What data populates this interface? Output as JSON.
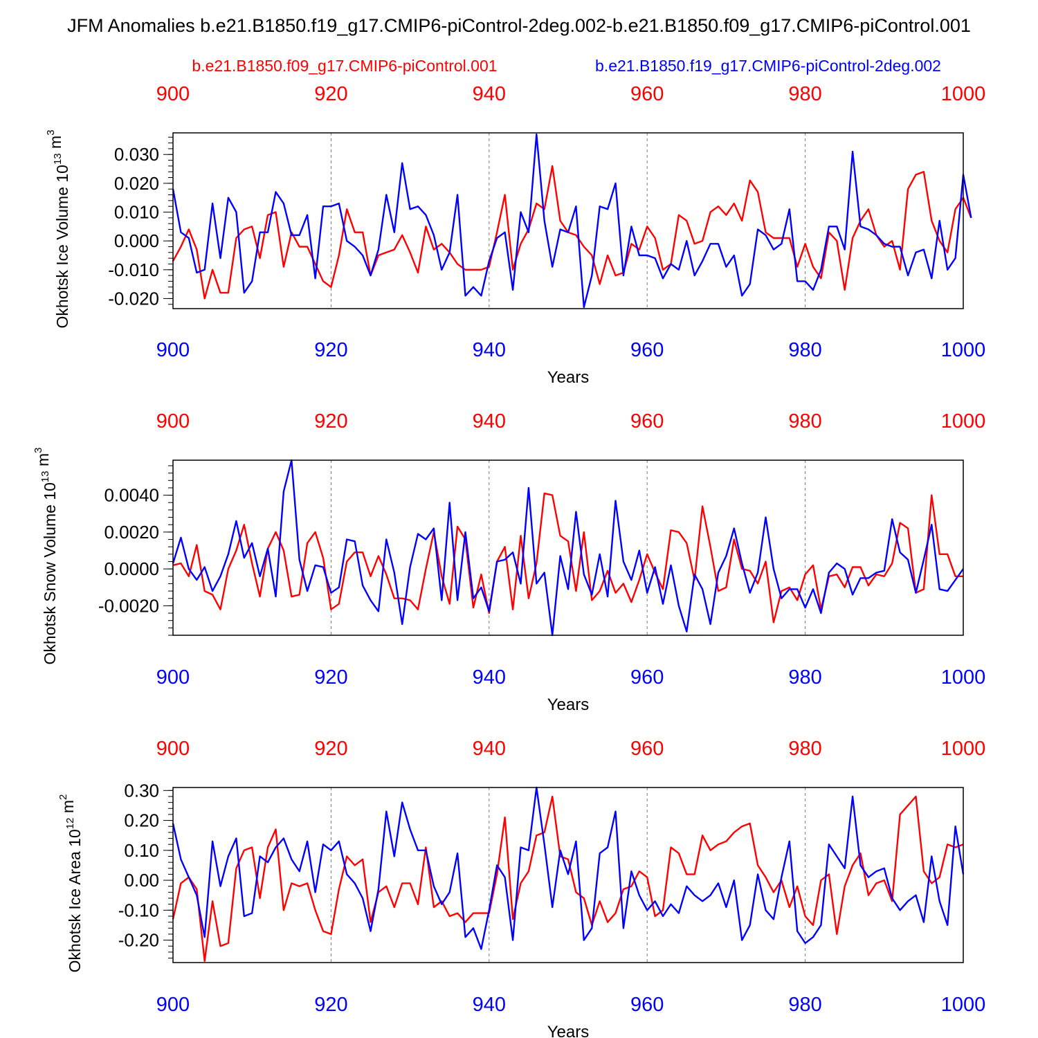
{
  "title": "JFM Anomalies b.e21.B1850.f19_g17.CMIP6-piControl-2deg.002-b.e21.B1850.f09_g17.CMIP6-piControl.001",
  "legend": {
    "red_label": "b.e21.B1850.f09_g17.CMIP6-piControl.001",
    "blue_label": "b.e21.B1850.f19_g17.CMIP6-piControl-2deg.002"
  },
  "colors": {
    "red": "#ff0000",
    "blue": "#0000ff",
    "frame": "#000000",
    "grid": "#777777"
  },
  "chart_data": [
    {
      "type": "line",
      "ylabel_main": "Okhotsk Ice Volume 10",
      "ylabel_sup": "13",
      "ylabel_unit": " m",
      "ylabel_unit_sup": "3",
      "xlabel": "Years",
      "xlim": [
        900,
        1000
      ],
      "ylim": [
        -0.0235,
        0.0375
      ],
      "xticks": [
        900,
        920,
        940,
        960,
        980,
        1000
      ],
      "xticklabels": [
        "900",
        "920",
        "940",
        "960",
        "980",
        "1000"
      ],
      "yticks": [
        -0.02,
        -0.01,
        0.0,
        0.01,
        0.02,
        0.03
      ],
      "yticklabels": [
        "-0.020",
        "-0.010",
        "0.000",
        "0.010",
        "0.020",
        "0.030"
      ],
      "series": [
        {
          "name": "b.e21.B1850.f09_g17.CMIP6-piControl.001",
          "color": "red",
          "x_start": 900,
          "values": [
            -0.007,
            -0.002,
            0.004,
            -0.003,
            -0.02,
            -0.01,
            -0.018,
            -0.018,
            0.001,
            0.004,
            0.005,
            -0.006,
            0.009,
            0.01,
            -0.009,
            0.003,
            -0.002,
            -0.002,
            -0.008,
            -0.014,
            -0.016,
            -0.005,
            0.011,
            0.003,
            0.003,
            -0.012,
            -0.005,
            -0.004,
            -0.003,
            0.002,
            -0.004,
            -0.011,
            0.005,
            -0.003,
            -0.001,
            -0.004,
            -0.008,
            -0.01,
            -0.01,
            -0.01,
            -0.009,
            0.003,
            0.016,
            -0.01,
            -0.001,
            0.004,
            0.013,
            0.011,
            0.026,
            0.007,
            0.003,
            0.002,
            -0.002,
            -0.005,
            -0.015,
            -0.005,
            -0.012,
            -0.011,
            -0.001,
            -0.003,
            0.005,
            0.001,
            -0.01,
            -0.008,
            0.009,
            0.007,
            -0.001,
            0.0,
            0.01,
            0.012,
            0.009,
            0.013,
            0.007,
            0.021,
            0.017,
            0.003,
            0.001,
            0.001,
            0.001,
            -0.009,
            -0.001,
            -0.009,
            -0.013,
            0.003,
            0.0,
            -0.017,
            0.001,
            0.007,
            0.011,
            0.002,
            -0.002,
            0.0,
            -0.01,
            0.018,
            0.023,
            0.024,
            0.007,
            0.0,
            -0.004,
            0.011,
            0.015,
            0.008
          ]
        },
        {
          "name": "b.e21.B1850.f19_g17.CMIP6-piControl-2deg.002",
          "color": "blue",
          "x_start": 900,
          "values": [
            0.018,
            0.003,
            0.001,
            -0.011,
            -0.01,
            0.013,
            -0.006,
            0.015,
            0.01,
            -0.018,
            -0.014,
            0.003,
            0.003,
            0.017,
            0.013,
            0.002,
            0.002,
            0.009,
            -0.013,
            0.012,
            0.012,
            0.013,
            0.0,
            -0.002,
            -0.005,
            -0.012,
            -0.003,
            0.016,
            0.003,
            0.027,
            0.011,
            0.012,
            0.009,
            0.002,
            -0.01,
            -0.004,
            0.016,
            -0.019,
            -0.016,
            -0.019,
            -0.007,
            0.001,
            0.003,
            -0.017,
            0.01,
            0.003,
            0.037,
            0.007,
            -0.009,
            0.004,
            0.003,
            0.012,
            -0.023,
            -0.012,
            0.012,
            0.011,
            0.02,
            -0.012,
            0.005,
            -0.005,
            -0.005,
            -0.006,
            -0.013,
            -0.008,
            -0.01,
            0.0,
            -0.012,
            -0.007,
            -0.001,
            -0.001,
            -0.009,
            -0.005,
            -0.019,
            -0.015,
            0.004,
            0.002,
            -0.003,
            -0.001,
            0.011,
            -0.014,
            -0.014,
            -0.017,
            -0.01,
            0.005,
            0.005,
            -0.003,
            0.031,
            0.005,
            0.004,
            0.002,
            -0.001,
            -0.002,
            -0.002,
            -0.012,
            -0.004,
            -0.003,
            -0.013,
            0.007,
            -0.01,
            -0.006,
            0.023,
            0.008
          ]
        }
      ]
    },
    {
      "type": "line",
      "ylabel_main": "Okhotsk Snow Volume 10",
      "ylabel_sup": "13",
      "ylabel_unit": " m",
      "ylabel_unit_sup": "3",
      "xlabel": "Years",
      "xlim": [
        900,
        1000
      ],
      "ylim": [
        -0.0036,
        0.0059
      ],
      "xticks": [
        900,
        920,
        940,
        960,
        980,
        1000
      ],
      "xticklabels": [
        "900",
        "920",
        "940",
        "960",
        "980",
        "1000"
      ],
      "yticks": [
        -0.002,
        0.0,
        0.002,
        0.004
      ],
      "yticklabels": [
        "-0.0020",
        "0.0000",
        "0.0020",
        "0.0040"
      ],
      "series": [
        {
          "name": "b.e21.B1850.f09_g17.CMIP6-piControl.001",
          "color": "red",
          "x_start": 900,
          "values": [
            0.0002,
            0.0003,
            -0.0004,
            0.0013,
            -0.0012,
            -0.0014,
            -0.0022,
            0.0,
            0.001,
            0.0024,
            0.0003,
            -0.0015,
            0.0011,
            0.002,
            0.001,
            -0.0015,
            -0.0014,
            0.0014,
            0.002,
            0.0006,
            -0.0022,
            -0.0019,
            0.0004,
            0.0009,
            0.0009,
            -0.0004,
            0.0007,
            -0.0003,
            -0.0016,
            -0.0016,
            -0.0017,
            -0.0022,
            0.0,
            0.002,
            -0.0004,
            -0.0019,
            0.0023,
            0.0016,
            -0.0021,
            -0.0003,
            -0.0024,
            0.0004,
            0.0012,
            -0.0022,
            0.0018,
            -0.0016,
            0.0003,
            0.0041,
            0.004,
            0.0018,
            0.0015,
            -0.0012,
            0.002,
            -0.0017,
            -0.0012,
            -0.0001,
            -0.0013,
            -0.0008,
            -0.0018,
            -0.0006,
            0.0008,
            -0.0002,
            -0.0011,
            0.0021,
            0.002,
            0.0014,
            -0.0006,
            0.0034,
            0.0012,
            -0.0012,
            -0.001,
            0.0016,
            0.0,
            -0.0001,
            -0.0008,
            0.0004,
            -0.0029,
            -0.0012,
            -0.001,
            -0.0017,
            -0.0003,
            0.0002,
            -0.0022,
            -0.0004,
            -0.0003,
            -0.001,
            0.0001,
            0.0001,
            -0.0009,
            -0.0003,
            -0.0004,
            0.0003,
            0.0025,
            0.0022,
            -0.0013,
            -0.0011,
            0.004,
            0.0008,
            0.0008,
            -0.0004,
            -0.0004
          ]
        },
        {
          "name": "b.e21.B1850.f19_g17.CMIP6-piControl-2deg.002",
          "color": "blue",
          "x_start": 900,
          "values": [
            0.0003,
            0.0017,
            0.0,
            -0.0006,
            0.0001,
            -0.0012,
            -0.0004,
            0.0008,
            0.0026,
            0.0006,
            0.0014,
            -0.0004,
            0.0011,
            -0.0015,
            0.0042,
            0.0059,
            0.0005,
            -0.0012,
            0.0002,
            0.0001,
            -0.0013,
            -0.001,
            0.0016,
            0.0015,
            -0.0009,
            -0.0017,
            -0.0023,
            0.0016,
            -0.0002,
            -0.003,
            0.0001,
            0.0019,
            0.0016,
            0.0022,
            -0.0017,
            0.0036,
            -0.0017,
            0.002,
            -0.0016,
            -0.001,
            -0.0023,
            0.0004,
            0.0005,
            0.0009,
            -0.0008,
            0.0044,
            -0.0008,
            -0.0002,
            -0.0036,
            0.0007,
            -0.0011,
            0.0031,
            -0.0003,
            -0.0014,
            0.0008,
            -0.0015,
            0.0037,
            0.0004,
            -0.0006,
            0.001,
            -0.0013,
            0.0001,
            -0.0019,
            0.0002,
            -0.002,
            -0.0034,
            -0.0003,
            -0.0011,
            -0.003,
            -0.0002,
            0.0007,
            0.0022,
            0.0003,
            -0.0013,
            -0.0002,
            0.0028,
            0.0,
            -0.0016,
            -0.0011,
            -0.0011,
            -0.0021,
            -0.0011,
            -0.0024,
            -0.0002,
            0.0003,
            0.0,
            -0.0014,
            -0.0005,
            -0.0005,
            -0.0002,
            -0.0001,
            0.0027,
            0.0009,
            0.0005,
            -0.0013,
            0.0005,
            0.0024,
            -0.0011,
            -0.0012,
            -0.0006,
            0.0
          ]
        }
      ]
    },
    {
      "type": "line",
      "ylabel_main": "Okhotsk Ice Area 10",
      "ylabel_sup": "12",
      "ylabel_unit": " m",
      "ylabel_unit_sup": "2",
      "xlabel": "Years",
      "xlim": [
        900,
        1000
      ],
      "ylim": [
        -0.275,
        0.31
      ],
      "xticks": [
        900,
        920,
        940,
        960,
        980,
        1000
      ],
      "xticklabels": [
        "900",
        "920",
        "940",
        "960",
        "980",
        "1000"
      ],
      "yticks": [
        -0.2,
        -0.1,
        0.0,
        0.1,
        0.2,
        0.3
      ],
      "yticklabels": [
        "-0.20",
        "-0.10",
        "0.00",
        "0.10",
        "0.20",
        "0.30"
      ],
      "series": [
        {
          "name": "b.e21.B1850.f09_g17.CMIP6-piControl.001",
          "color": "red",
          "x_start": 900,
          "values": [
            -0.13,
            -0.01,
            0.01,
            -0.03,
            -0.27,
            -0.07,
            -0.22,
            -0.21,
            0.04,
            0.1,
            0.11,
            -0.06,
            0.11,
            0.17,
            -0.1,
            -0.01,
            -0.02,
            -0.01,
            -0.1,
            -0.17,
            -0.18,
            -0.03,
            0.08,
            0.05,
            0.07,
            -0.14,
            -0.04,
            -0.02,
            -0.09,
            -0.01,
            -0.01,
            -0.08,
            0.11,
            -0.09,
            -0.07,
            -0.12,
            -0.11,
            -0.14,
            -0.11,
            -0.11,
            -0.11,
            0.02,
            0.21,
            -0.13,
            -0.01,
            0.03,
            0.15,
            0.16,
            0.28,
            0.08,
            0.07,
            -0.04,
            -0.06,
            -0.15,
            -0.07,
            -0.14,
            -0.11,
            -0.03,
            -0.02,
            0.03,
            0.01,
            -0.12,
            -0.1,
            0.11,
            0.09,
            0.02,
            0.02,
            0.15,
            0.1,
            0.12,
            0.13,
            0.16,
            0.18,
            0.19,
            0.05,
            0.01,
            -0.04,
            0.0,
            -0.09,
            -0.02,
            -0.12,
            -0.15,
            0.0,
            0.02,
            -0.18,
            -0.02,
            0.05,
            0.09,
            -0.05,
            -0.01,
            0.0,
            -0.07,
            0.22,
            0.25,
            0.28,
            0.03,
            -0.01,
            0.01,
            0.12,
            0.11,
            0.12
          ]
        },
        {
          "name": "b.e21.B1850.f19_g17.CMIP6-piControl-2deg.002",
          "color": "blue",
          "x_start": 900,
          "values": [
            0.19,
            0.07,
            0.01,
            -0.05,
            -0.19,
            0.13,
            -0.02,
            0.08,
            0.14,
            -0.12,
            -0.11,
            0.08,
            0.06,
            0.11,
            0.14,
            0.07,
            0.03,
            0.13,
            -0.04,
            0.12,
            0.1,
            0.13,
            0.02,
            -0.01,
            -0.06,
            -0.17,
            -0.03,
            0.23,
            0.08,
            0.26,
            0.17,
            0.1,
            0.1,
            -0.02,
            -0.08,
            -0.04,
            0.09,
            -0.19,
            -0.16,
            -0.23,
            -0.1,
            0.05,
            0.01,
            -0.2,
            0.11,
            0.1,
            0.31,
            0.12,
            -0.09,
            0.1,
            0.02,
            0.13,
            -0.2,
            -0.16,
            0.09,
            0.11,
            0.23,
            -0.16,
            0.03,
            -0.05,
            -0.1,
            -0.07,
            -0.12,
            -0.08,
            -0.11,
            -0.02,
            -0.05,
            -0.07,
            -0.05,
            -0.01,
            -0.09,
            0.0,
            -0.2,
            -0.15,
            0.02,
            -0.1,
            -0.13,
            0.01,
            0.13,
            -0.17,
            -0.21,
            -0.19,
            -0.15,
            0.12,
            0.08,
            0.04,
            0.28,
            0.05,
            0.01,
            0.03,
            0.04,
            -0.06,
            -0.1,
            -0.07,
            -0.05,
            -0.14,
            0.08,
            -0.07,
            -0.15,
            0.18,
            0.02
          ]
        }
      ]
    }
  ]
}
